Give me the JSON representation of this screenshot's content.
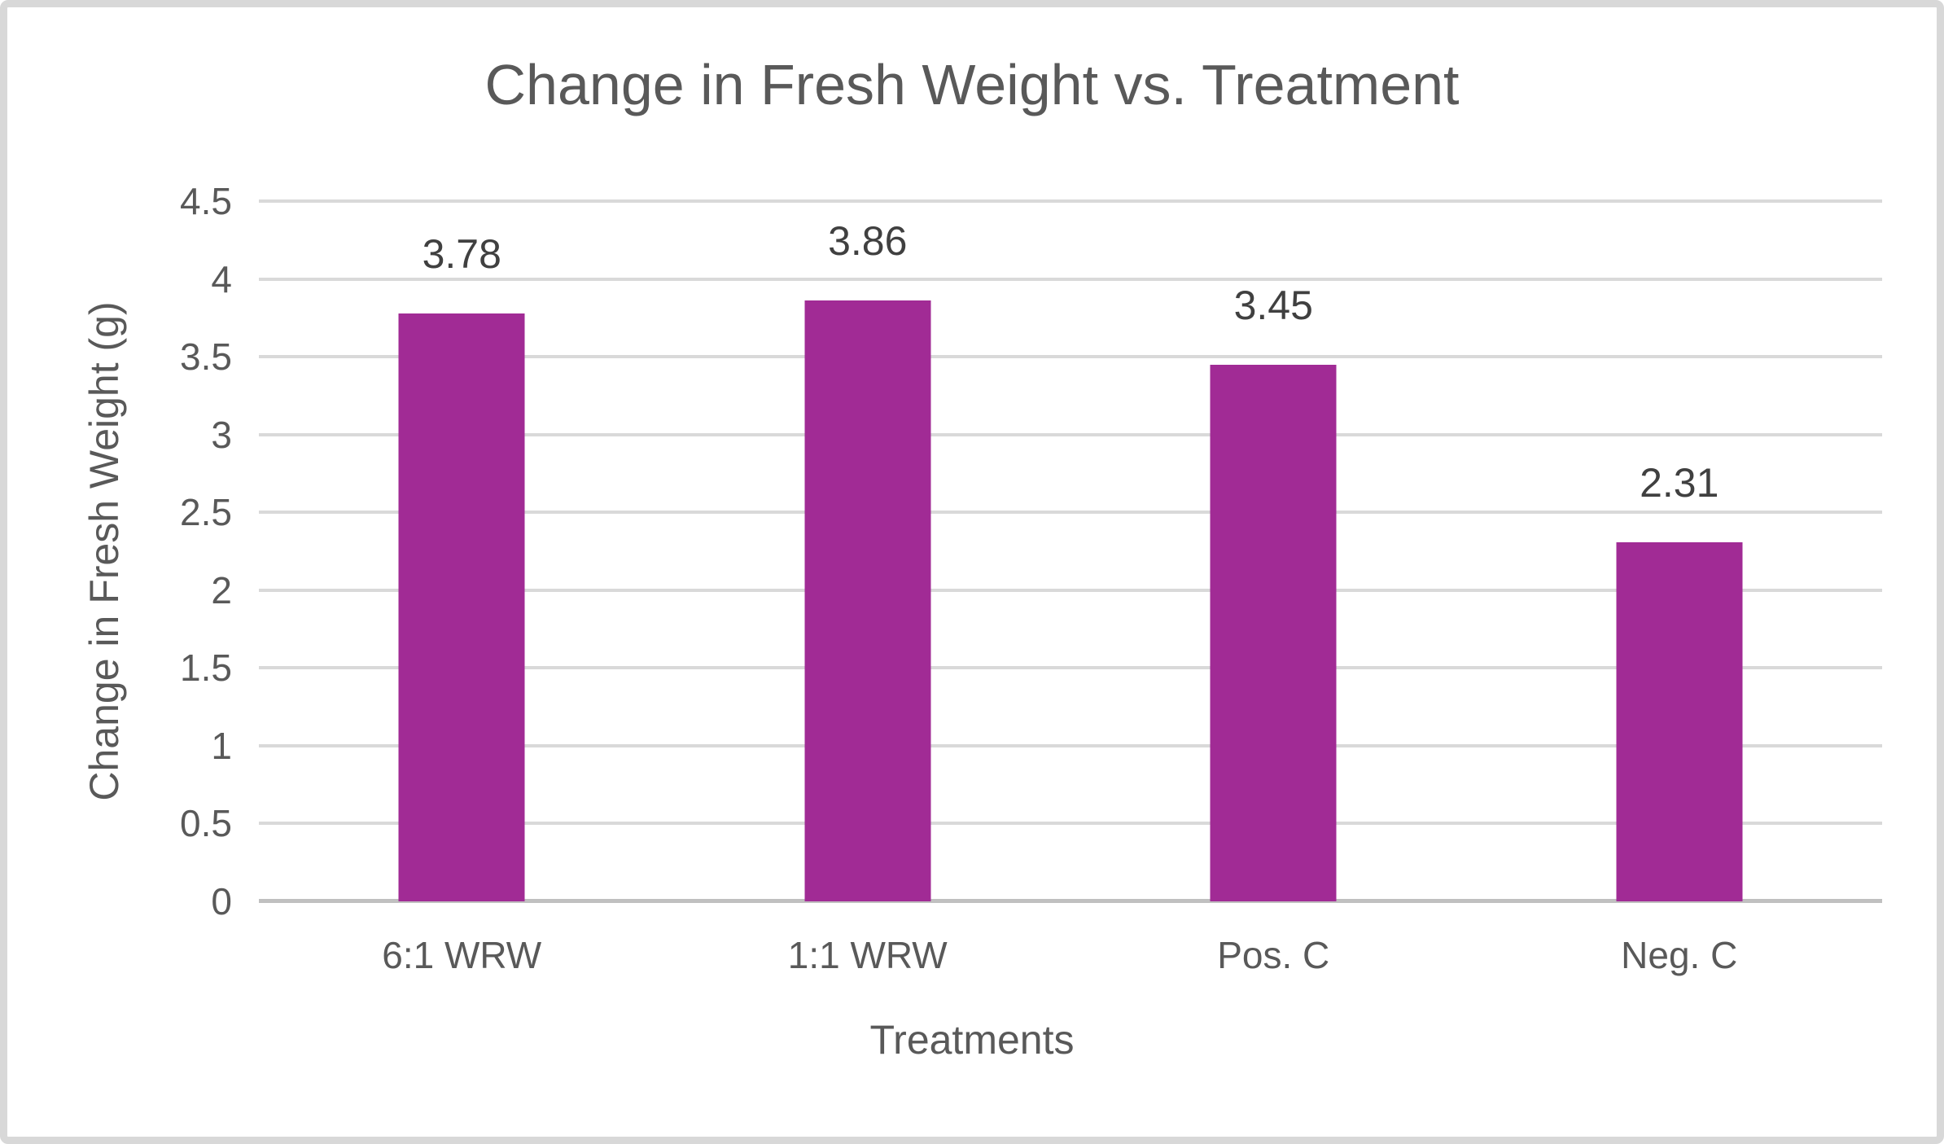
{
  "chart_data": {
    "type": "bar",
    "title": "Change in Fresh Weight vs. Treatment",
    "xlabel": "Treatments",
    "ylabel": "Change in Fresh Weight (g)",
    "categories": [
      "6:1 WRW",
      "1:1 WRW",
      "Pos. C",
      "Neg. C"
    ],
    "values": [
      3.78,
      3.86,
      3.45,
      2.31
    ],
    "data_labels": [
      "3.78",
      "3.86",
      "3.45",
      "2.31"
    ],
    "ylim": [
      0,
      4.5
    ],
    "ytick_step": 0.5,
    "yticks": [
      "0",
      "0.5",
      "1",
      "1.5",
      "2",
      "2.5",
      "3",
      "3.5",
      "4",
      "4.5"
    ],
    "grid": "horizontal",
    "legend": "none",
    "colors": {
      "bar": "#A12B95",
      "gridline": "#D9D9D9",
      "axis_line": "#C0C0C0",
      "axis_text": "#595959",
      "data_label_text": "#404040",
      "frame_border": "#D8D8D8",
      "background": "#FFFFFF"
    }
  }
}
